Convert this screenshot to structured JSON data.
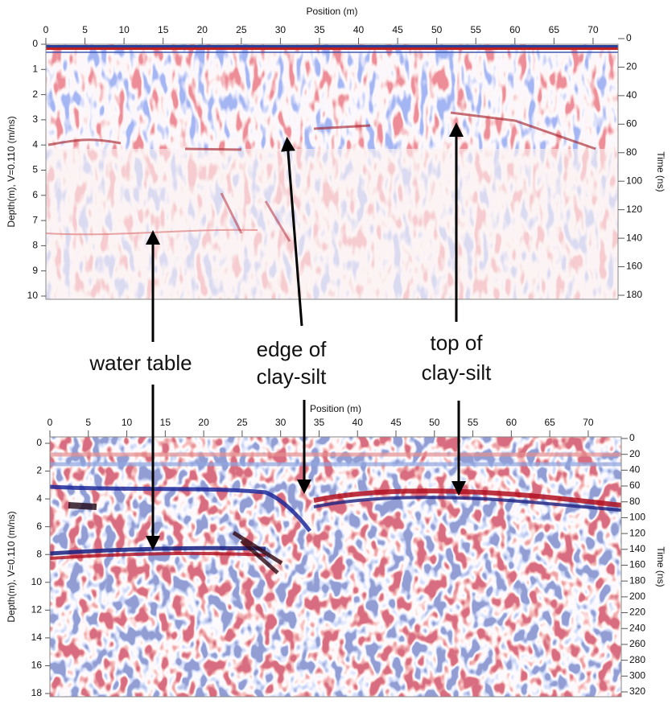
{
  "chart_data": [
    {
      "type": "radargram",
      "x_label": "Position (m)",
      "y_label": "Depth(m), V=0.110 (m/ns)",
      "y2_label": "Time (ns)",
      "xlim": [
        0,
        73.2
      ],
      "xticks": [
        0,
        5,
        10,
        15,
        20,
        25,
        30,
        35,
        40,
        45,
        50,
        55,
        60,
        65,
        70
      ],
      "ylim": [
        0,
        10
      ],
      "yticks": [
        0,
        1,
        2,
        3,
        4,
        5,
        6,
        7,
        8,
        9,
        10
      ],
      "y2lim": [
        0,
        180
      ],
      "y2ticks": [
        0,
        20,
        40,
        60,
        80,
        100,
        120,
        140,
        160,
        180
      ]
    },
    {
      "type": "radargram",
      "x_label": "Position (m)",
      "y_label": "Depth(m), V=0.110 (m/ns)",
      "y2_label": "Time (ns)",
      "xlim": [
        0,
        74.3
      ],
      "xticks": [
        0,
        5,
        10,
        15,
        20,
        25,
        30,
        35,
        40,
        45,
        50,
        55,
        60,
        65,
        70
      ],
      "ylim": [
        0,
        18
      ],
      "yticks": [
        0,
        2,
        4,
        6,
        8,
        10,
        12,
        14,
        16,
        18
      ],
      "y2lim": [
        0,
        320
      ],
      "y2ticks": [
        0,
        20,
        40,
        60,
        80,
        100,
        120,
        140,
        160,
        180,
        200,
        220,
        240,
        260,
        280,
        300,
        320
      ]
    }
  ],
  "annotations": [
    {
      "lines": [
        "water table"
      ]
    },
    {
      "lines": [
        "edge of",
        "clay-silt"
      ]
    },
    {
      "lines": [
        "top of",
        "clay-silt"
      ]
    }
  ]
}
